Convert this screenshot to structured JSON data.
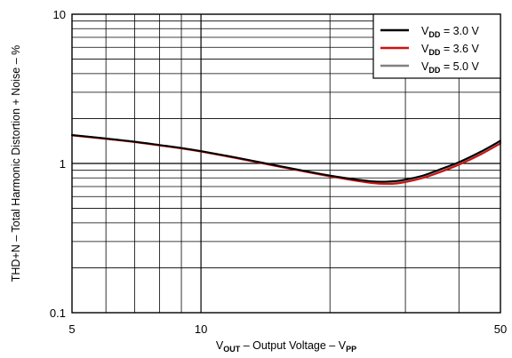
{
  "chart_data": {
    "type": "line",
    "x_scale": "log",
    "y_scale": "log",
    "xlim": [
      5,
      50
    ],
    "ylim": [
      0.1,
      10
    ],
    "grid": true,
    "legend_position": "top-right",
    "x_tick_labels": [
      "5",
      "10",
      "50"
    ],
    "y_tick_labels": [
      "0.1",
      "1",
      "10"
    ],
    "xlabel": {
      "parts": [
        {
          "text": "V",
          "sub": false
        },
        {
          "text": "OUT",
          "sub": true
        },
        {
          "text": " – Output Voltage – V",
          "sub": false
        },
        {
          "text": "PP",
          "sub": true
        }
      ]
    },
    "ylabel": "THD+N – Total Harmonic Distortion + Noise – %",
    "series": [
      {
        "name_main": "V",
        "name_sub": "DD",
        "name_rest": " = 3.0 V",
        "color": "#000000",
        "x": [
          5,
          6,
          7,
          8,
          9,
          10,
          12,
          15,
          20,
          25,
          28,
          30,
          33,
          36,
          40,
          45,
          50
        ],
        "y": [
          1.55,
          1.47,
          1.4,
          1.33,
          1.27,
          1.21,
          1.1,
          0.97,
          0.83,
          0.76,
          0.76,
          0.78,
          0.83,
          0.91,
          1.02,
          1.2,
          1.42
        ]
      },
      {
        "name_main": "V",
        "name_sub": "DD",
        "name_rest": " = 3.6 V",
        "color": "#d01010",
        "x": [
          5,
          6,
          7,
          8,
          9,
          10,
          12,
          15,
          20,
          25,
          28,
          30,
          33,
          36,
          40,
          45,
          50
        ],
        "y": [
          1.54,
          1.46,
          1.39,
          1.32,
          1.26,
          1.2,
          1.09,
          0.96,
          0.82,
          0.74,
          0.73,
          0.75,
          0.8,
          0.87,
          0.98,
          1.15,
          1.36
        ]
      },
      {
        "name_main": "V",
        "name_sub": "DD",
        "name_rest": " = 5.0 V",
        "color": "#808080",
        "x": [
          5,
          6,
          7,
          8,
          9,
          10,
          12,
          15,
          20,
          25,
          28,
          30,
          33,
          36,
          40,
          45,
          50
        ],
        "y": [
          1.55,
          1.47,
          1.4,
          1.33,
          1.27,
          1.21,
          1.1,
          0.97,
          0.82,
          0.75,
          0.74,
          0.76,
          0.81,
          0.89,
          1.0,
          1.17,
          1.38
        ]
      }
    ]
  }
}
